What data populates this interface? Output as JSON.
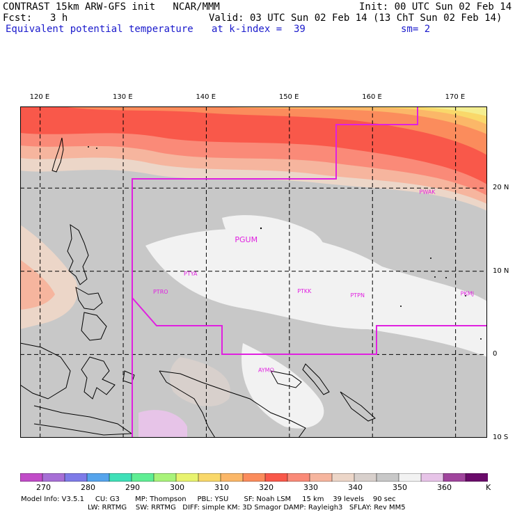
{
  "header": {
    "title_left": "CONTRAST 15km ARW-GFS init   NCAR/MMM",
    "init": "Init: 00 UTC Sun 02 Feb 14",
    "fcst_label": "Fcst:",
    "fcst_value": "3 h",
    "valid": "Valid: 03 UTC Sun 02 Feb 14 (13 ChT Sun 02 Feb 14)",
    "field": "Equivalent potential temperature",
    "level": "at k-index =  39",
    "smoothing": "sm= 2"
  },
  "map": {
    "lon_labels": [
      {
        "lon": 120,
        "text": "120 E"
      },
      {
        "lon": 130,
        "text": "130 E"
      },
      {
        "lon": 140,
        "text": "140 E"
      },
      {
        "lon": 150,
        "text": "150 E"
      },
      {
        "lon": 160,
        "text": "160 E"
      },
      {
        "lon": 170,
        "text": "170 E"
      }
    ],
    "lat_labels": [
      {
        "lat": 20,
        "text": "20 N"
      },
      {
        "lat": 10,
        "text": "10 N"
      },
      {
        "lat": 0,
        "text": "0"
      },
      {
        "lat": -10,
        "text": "10 S"
      }
    ],
    "lon_range": [
      117.6,
      173.8
    ],
    "lat_range": [
      -10,
      29.8
    ],
    "stations": [
      {
        "id": "PWAK",
        "lon": 166.6,
        "lat": 19.3
      },
      {
        "id": "PGUM",
        "lon": 144.8,
        "lat": 13.5
      },
      {
        "id": "PTYA",
        "lon": 138.1,
        "lat": 9.5
      },
      {
        "id": "PTRO",
        "lon": 134.5,
        "lat": 7.3
      },
      {
        "id": "PTKK",
        "lon": 151.8,
        "lat": 7.4
      },
      {
        "id": "PTPN",
        "lon": 158.2,
        "lat": 6.9
      },
      {
        "id": "PKMJ",
        "lon": 171.4,
        "lat": 7.1
      },
      {
        "id": "AYMO",
        "lon": 147.2,
        "lat": -2.1
      }
    ],
    "boundary_color": "#e020e0"
  },
  "colorbar": {
    "labels": [
      "270",
      "280",
      "290",
      "300",
      "310",
      "320",
      "330",
      "340",
      "350",
      "360"
    ],
    "unit": "K",
    "colors": [
      "#c14cc8",
      "#a76fd6",
      "#7e7be8",
      "#56a4ec",
      "#3fe0b8",
      "#5fee94",
      "#a9f37a",
      "#e8f36f",
      "#f9d86a",
      "#fbb768",
      "#fb8c5c",
      "#f9584a",
      "#fa8a78",
      "#f6b59e",
      "#ecd6c8",
      "#d8d0cc",
      "#c8c8c8",
      "#f2f2f2",
      "#e7c4e8",
      "#a0459d",
      "#6a0a6a"
    ]
  },
  "model_info": {
    "line1": "Model Info: V3.5.1     CU: G3       MP: Thompson     PBL: YSU       SF: Noah LSM     15 km    39 levels    90 sec",
    "line2": "LW: RRTMG    SW: RRTMG   DIFF: simple KM: 3D Smagor DAMP: Rayleigh3   SFLAY: Rev MM5"
  }
}
